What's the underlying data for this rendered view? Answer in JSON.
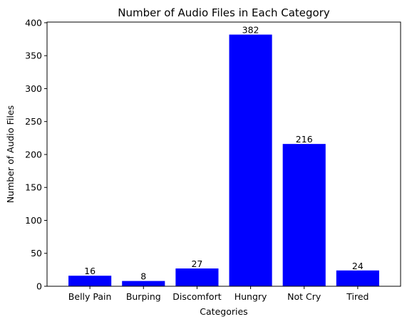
{
  "chart_data": {
    "type": "bar",
    "title": "Number of Audio Files in Each Category",
    "xlabel": "Categories",
    "ylabel": "Number of Audio Files",
    "categories": [
      "Belly Pain",
      "Burping",
      "Discomfort",
      "Hungry",
      "Not Cry",
      "Tired"
    ],
    "values": [
      16,
      8,
      27,
      382,
      216,
      24
    ],
    "data_labels": [
      "16",
      "8",
      "27",
      "382",
      "216",
      "24"
    ],
    "ylim": [
      0,
      401
    ],
    "yticks": [
      0,
      50,
      100,
      150,
      200,
      250,
      300,
      350,
      400
    ],
    "bar_color": "#0000ff",
    "grid": false,
    "legend": "none"
  }
}
